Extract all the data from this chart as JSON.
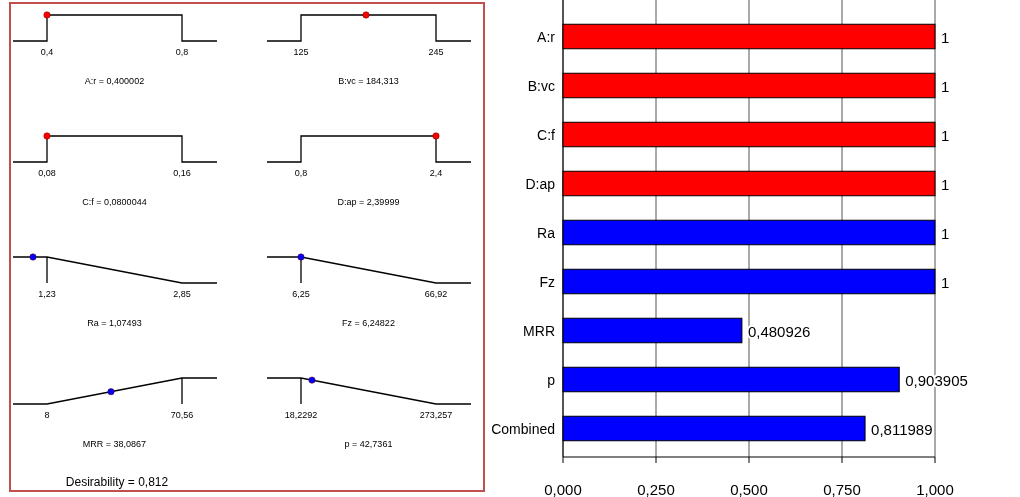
{
  "chart_data": [
    {
      "type": "other",
      "annotations": [
        "0,4",
        "0,8",
        "A:r = 0,400002",
        "125",
        "245",
        "B:vc = 184,313",
        "0,08",
        "0,16",
        "C:f = 0,0800044",
        "0,8",
        "2,4",
        "D:ap = 2,39999",
        "1,23",
        "2,85",
        "Ra = 1,07493",
        "6,25",
        "66,92",
        "Fz = 6,24822",
        "8",
        "70,56",
        "MRR = 38,0867",
        "18,2292",
        "273,257",
        "p = 42,7361",
        "Desirability = 0,812"
      ]
    },
    {
      "type": "bar",
      "orientation": "horizontal",
      "categories": [
        "A:r",
        "B:vc",
        "C:f",
        "D:ap",
        "Ra",
        "Fz",
        "MRR",
        "p",
        "Combined"
      ],
      "values": [
        1,
        1,
        1,
        1,
        1,
        1,
        0.480926,
        0.903905,
        0.811989
      ],
      "colors": [
        "#ff0000",
        "#ff0000",
        "#ff0000",
        "#ff0000",
        "#0000ff",
        "#0000ff",
        "#0000ff",
        "#0000ff",
        "#0000ff"
      ],
      "value_labels": [
        "1",
        "1",
        "1",
        "1",
        "1",
        "1",
        "0,480926",
        "0,903905",
        "0,811989"
      ],
      "xlim": [
        0,
        1
      ],
      "xticks": [
        {
          "value": 0,
          "label": "0,000"
        },
        {
          "value": 0.25,
          "label": "0,250"
        },
        {
          "value": 0.5,
          "label": "0,500"
        },
        {
          "value": 0.75,
          "label": "0,750"
        },
        {
          "value": 1,
          "label": "1,000"
        }
      ],
      "grid": "x"
    }
  ]
}
